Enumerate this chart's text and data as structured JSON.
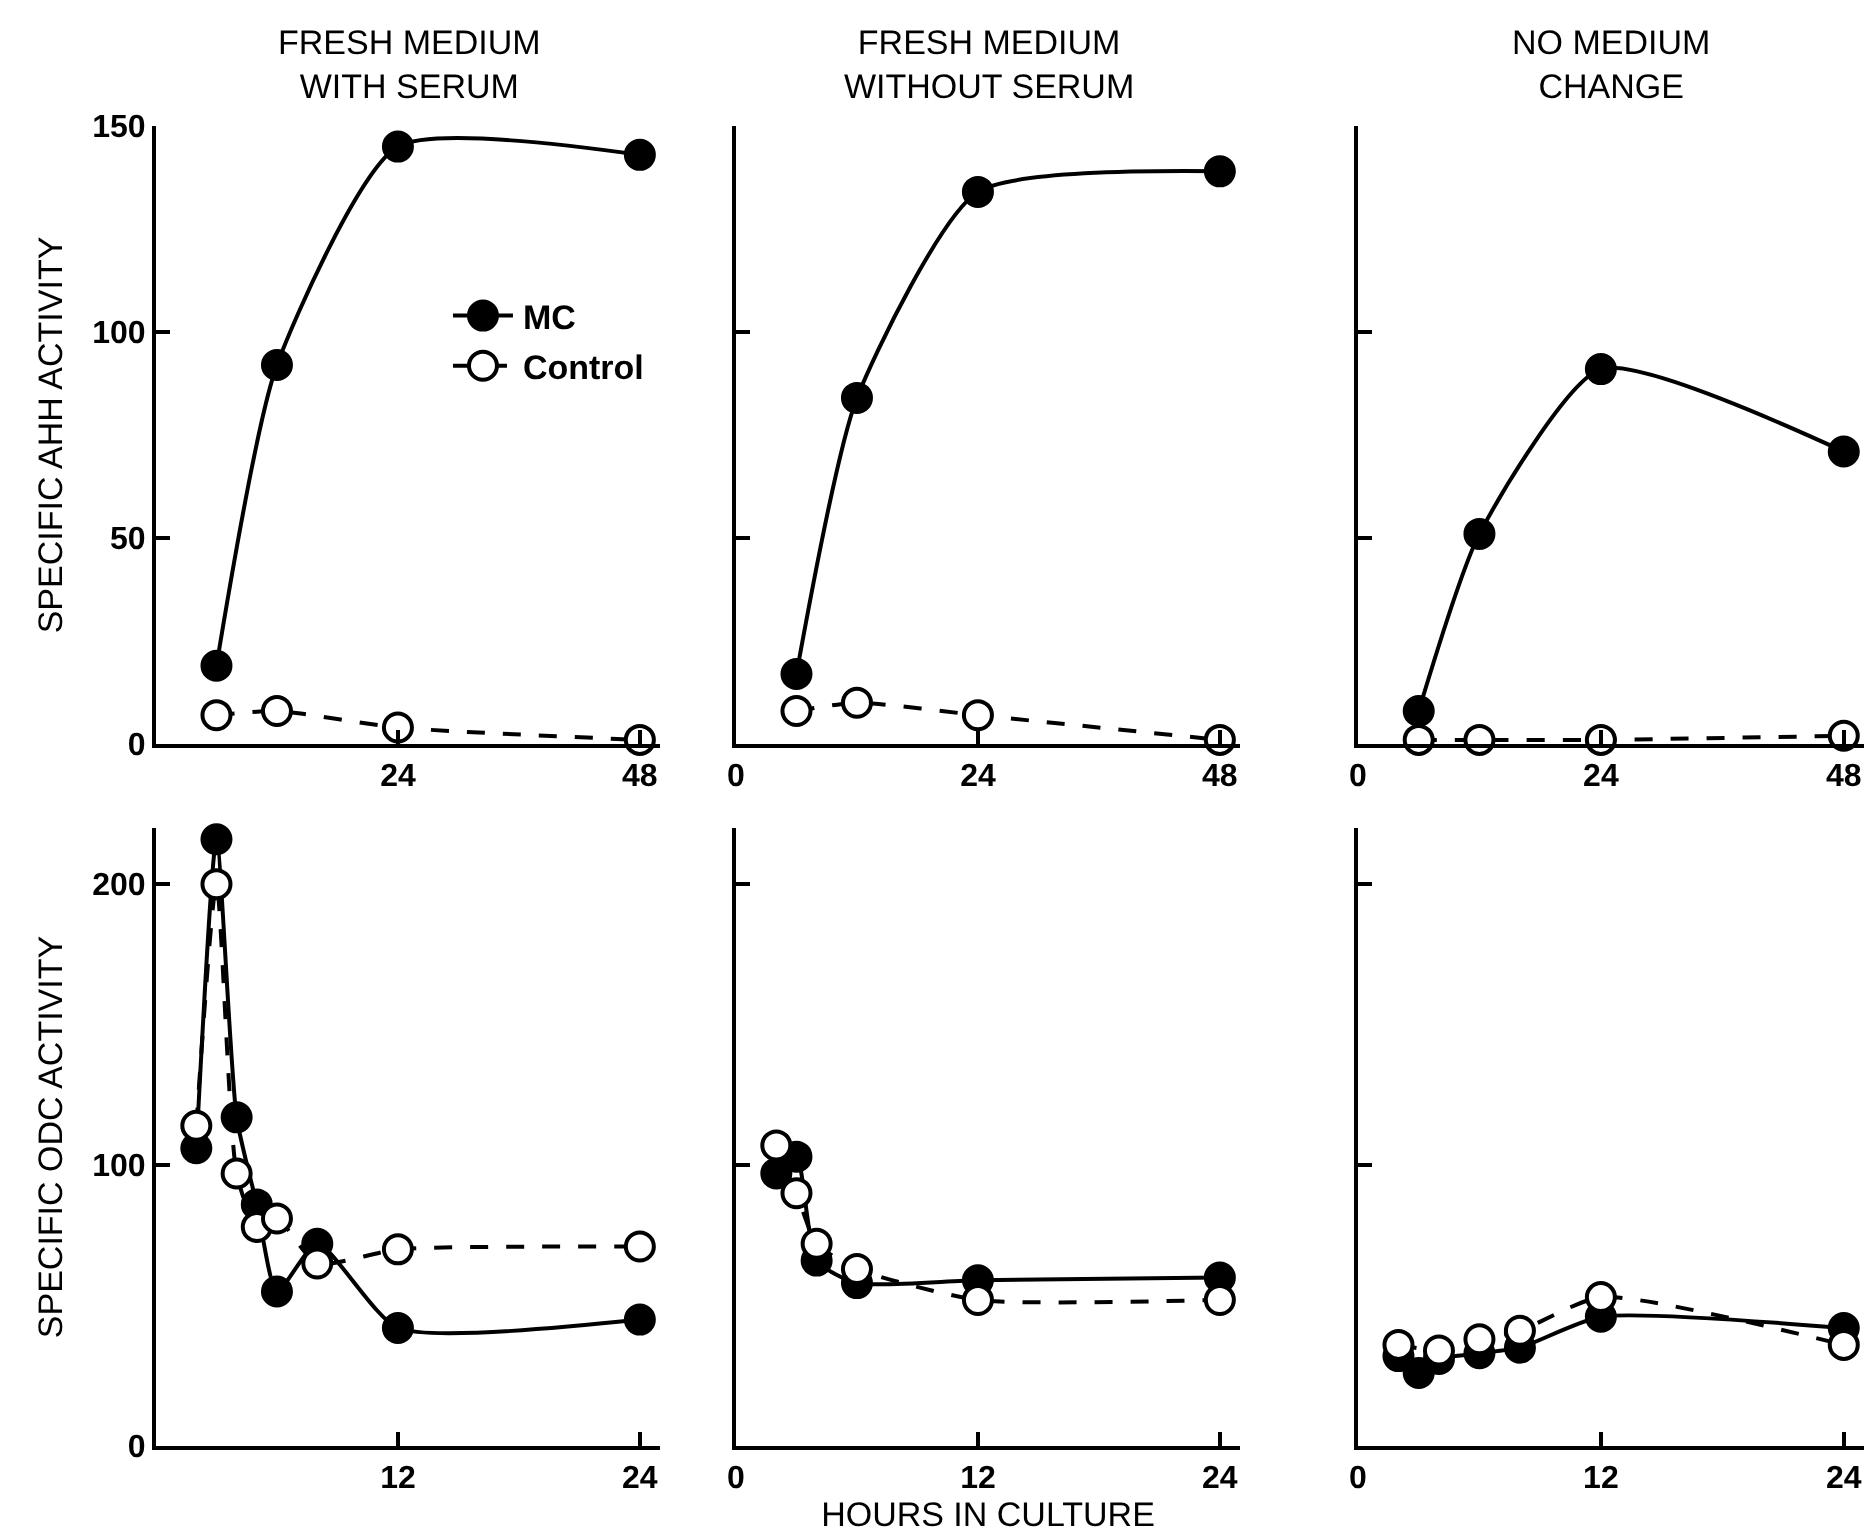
{
  "chart_data": [
    {
      "type": "line",
      "title": "FRESH MEDIUM\nWITH SERUM",
      "ylabel": "SPECIFIC AHH ACTIVITY",
      "xlim": [
        0,
        50
      ],
      "xticks": [
        24,
        48
      ],
      "ylim": [
        0,
        150
      ],
      "yticks": [
        0,
        50,
        100,
        150
      ],
      "legend": "top right",
      "marker": "circle",
      "grid": false,
      "series": [
        {
          "name": "MC",
          "color": "#000000",
          "line_style": "solid",
          "x": [
            6,
            12,
            24,
            48
          ],
          "values": [
            19,
            92,
            145,
            143
          ]
        },
        {
          "name": "Control",
          "color": "#000000",
          "line_style": "dashed",
          "x": [
            6,
            12,
            24,
            48
          ],
          "values": [
            7,
            8,
            4,
            1
          ]
        }
      ]
    },
    {
      "type": "line",
      "title": "FRESH MEDIUM\nWITHOUT SERUM",
      "xlim": [
        0,
        50
      ],
      "xticks": [
        0,
        24,
        48
      ],
      "ylim": [
        0,
        150
      ],
      "yticks": [
        0,
        50,
        100,
        150
      ],
      "tick_labels": "x",
      "legend": false,
      "marker": "circle",
      "grid": false,
      "series": [
        {
          "color": "#000000",
          "line_style": "solid",
          "x": [
            6,
            12,
            24,
            48
          ],
          "values": [
            17,
            84,
            134,
            139
          ]
        },
        {
          "color": "#000000",
          "line_style": "dashed",
          "x": [
            6,
            12,
            24,
            48
          ],
          "values": [
            8,
            10,
            7,
            1
          ]
        }
      ]
    },
    {
      "type": "line",
      "title": "NO MEDIUM\nCHANGE",
      "xlim": [
        0,
        50
      ],
      "xticks": [
        0,
        24,
        48
      ],
      "ylim": [
        0,
        150
      ],
      "yticks": [
        0,
        50,
        100,
        150
      ],
      "tick_labels": "x",
      "legend": false,
      "marker": "circle",
      "grid": false,
      "series": [
        {
          "color": "#000000",
          "line_style": "solid",
          "x": [
            6,
            12,
            24,
            48
          ],
          "values": [
            8,
            51,
            91,
            71
          ]
        },
        {
          "color": "#000000",
          "line_style": "dashed",
          "x": [
            6,
            12,
            24,
            48
          ],
          "values": [
            1,
            1,
            1,
            2
          ]
        }
      ]
    },
    {
      "type": "line",
      "ylabel": "SPECIFIC ODC ACTIVITY",
      "xlim": [
        0,
        25
      ],
      "xticks": [
        12,
        24
      ],
      "ylim": [
        0,
        220
      ],
      "yticks": [
        0,
        100,
        200
      ],
      "legend": false,
      "marker": "circle",
      "grid": false,
      "series": [
        {
          "color": "#000000",
          "line_style": "solid",
          "x": [
            2,
            3,
            4,
            5,
            6,
            8,
            12,
            24
          ],
          "values": [
            106,
            216,
            117,
            86,
            55,
            72,
            42,
            45
          ]
        },
        {
          "color": "#000000",
          "line_style": "dashed",
          "x": [
            2,
            3,
            4,
            5,
            6,
            8,
            12,
            24
          ],
          "values": [
            114,
            200,
            97,
            78,
            81,
            65,
            70,
            71
          ]
        }
      ]
    },
    {
      "type": "line",
      "xlabel": "HOURS IN CULTURE",
      "xlim": [
        0,
        25
      ],
      "xticks": [
        0,
        12,
        24
      ],
      "ylim": [
        0,
        220
      ],
      "yticks": [
        0,
        100,
        200
      ],
      "tick_labels": "x",
      "legend": false,
      "marker": "circle",
      "grid": false,
      "series": [
        {
          "color": "#000000",
          "line_style": "solid",
          "x": [
            2,
            3,
            4,
            6,
            12,
            24
          ],
          "values": [
            97,
            103,
            66,
            58,
            59,
            60
          ]
        },
        {
          "color": "#000000",
          "line_style": "dashed",
          "x": [
            2,
            3,
            4,
            6,
            12,
            24
          ],
          "values": [
            107,
            90,
            72,
            63,
            52,
            52
          ]
        }
      ]
    },
    {
      "type": "line",
      "xlim": [
        0,
        25
      ],
      "xticks": [
        0,
        12,
        24
      ],
      "ylim": [
        0,
        220
      ],
      "yticks": [
        0,
        100,
        200
      ],
      "tick_labels": "x",
      "legend": false,
      "marker": "circle",
      "grid": false,
      "series": [
        {
          "color": "#000000",
          "line_style": "solid",
          "x": [
            2,
            3,
            4,
            6,
            8,
            12,
            24
          ],
          "values": [
            32,
            26,
            31,
            33,
            35,
            46,
            42
          ]
        },
        {
          "color": "#000000",
          "line_style": "dashed",
          "x": [
            2,
            4,
            6,
            8,
            12,
            24
          ],
          "values": [
            36,
            34,
            38,
            41,
            53,
            36
          ]
        }
      ]
    }
  ]
}
